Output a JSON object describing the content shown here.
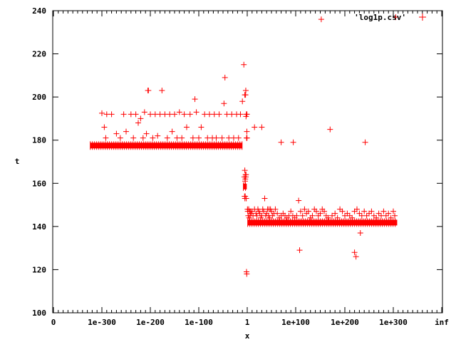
{
  "chart_data": {
    "type": "scatter",
    "xlabel": "x",
    "ylabel": "t",
    "ylim": [
      100,
      240
    ],
    "grid": false,
    "legend_placement": "top-right",
    "x_scale": "log-of-log (exponent)",
    "x_ticks": [
      {
        "label": "0",
        "pos": 0
      },
      {
        "label": "1e-300",
        "pos": 1
      },
      {
        "label": "1e-200",
        "pos": 2
      },
      {
        "label": "1e-100",
        "pos": 3
      },
      {
        "label": "1",
        "pos": 4
      },
      {
        "label": "1e+100",
        "pos": 5
      },
      {
        "label": "1e+200",
        "pos": 6
      },
      {
        "label": "1e+300",
        "pos": 7
      },
      {
        "label": "inf",
        "pos": 8
      }
    ],
    "y_ticks": [
      100,
      120,
      140,
      160,
      180,
      200,
      220,
      240
    ],
    "series": [
      {
        "name": "'log1p.csv'",
        "color": "#ff0000",
        "marker": "plus",
        "bands": [
          {
            "x_from": -324,
            "x_to": -10,
            "y": 177.5
          },
          {
            "x_from": -8,
            "x_to": -1,
            "y": 158.5
          },
          {
            "x_from": 1,
            "x_to": 308,
            "y": 141.8
          }
        ],
        "points": [
          [
            -300,
            192.5
          ],
          [
            -295,
            186
          ],
          [
            -292,
            181
          ],
          [
            -290,
            192
          ],
          [
            -280,
            192
          ],
          [
            -270,
            183
          ],
          [
            -262,
            181
          ],
          [
            -255,
            192
          ],
          [
            -250,
            184
          ],
          [
            -240,
            192
          ],
          [
            -235,
            181
          ],
          [
            -230,
            192
          ],
          [
            -225,
            188
          ],
          [
            -220,
            190
          ],
          [
            -215,
            181
          ],
          [
            -212,
            193
          ],
          [
            -208,
            183
          ],
          [
            -205,
            203
          ],
          [
            -204,
            203
          ],
          [
            -200,
            192
          ],
          [
            -195,
            181
          ],
          [
            -190,
            192
          ],
          [
            -185,
            182
          ],
          [
            -180,
            192
          ],
          [
            -176,
            203
          ],
          [
            -170,
            192
          ],
          [
            -165,
            181
          ],
          [
            -160,
            192
          ],
          [
            -155,
            184
          ],
          [
            -150,
            192
          ],
          [
            -145,
            181
          ],
          [
            -140,
            193
          ],
          [
            -135,
            181
          ],
          [
            -130,
            192
          ],
          [
            -125,
            186
          ],
          [
            -118,
            192
          ],
          [
            -112,
            181
          ],
          [
            -108,
            199
          ],
          [
            -105,
            193
          ],
          [
            -100,
            181
          ],
          [
            -95,
            186
          ],
          [
            -88,
            192
          ],
          [
            -82,
            181
          ],
          [
            -78,
            192
          ],
          [
            -72,
            181
          ],
          [
            -68,
            192
          ],
          [
            -64,
            181
          ],
          [
            -58,
            192
          ],
          [
            -52,
            181
          ],
          [
            -48,
            197
          ],
          [
            -46,
            209
          ],
          [
            -42,
            192
          ],
          [
            -38,
            181
          ],
          [
            -32,
            192
          ],
          [
            -28,
            181
          ],
          [
            -22,
            192
          ],
          [
            -18,
            181
          ],
          [
            -14,
            192
          ],
          [
            -10,
            198
          ],
          [
            -7,
            215
          ],
          [
            -5,
            201
          ],
          [
            -3,
            203
          ],
          [
            -3.5,
            201
          ],
          [
            -2.5,
            191
          ],
          [
            -1.8,
            192
          ],
          [
            -1.2,
            181
          ],
          [
            -1,
            181
          ],
          [
            -0.6,
            192
          ],
          [
            -6,
            163
          ],
          [
            -5,
            166
          ],
          [
            -4.5,
            161
          ],
          [
            -4,
            162
          ],
          [
            -3.5,
            164
          ],
          [
            -3,
            163
          ],
          [
            -2.5,
            164
          ],
          [
            -5.5,
            154
          ],
          [
            -4.8,
            153
          ],
          [
            -4.2,
            154
          ],
          [
            -2,
            153
          ],
          [
            -0.8,
            184
          ],
          [
            -0.5,
            181
          ],
          [
            -1.5,
            119
          ],
          [
            -1,
            118
          ],
          [
            0.5,
            148
          ],
          [
            1,
            147
          ],
          [
            2,
            145
          ],
          [
            3,
            148
          ],
          [
            4,
            144
          ],
          [
            5,
            147
          ],
          [
            6,
            145
          ],
          [
            7,
            147
          ],
          [
            8,
            146
          ],
          [
            10,
            147
          ],
          [
            12,
            145
          ],
          [
            15,
            148
          ],
          [
            18,
            146
          ],
          [
            20,
            145
          ],
          [
            22,
            148
          ],
          [
            24,
            147
          ],
          [
            26,
            146
          ],
          [
            28,
            144
          ],
          [
            30,
            145
          ],
          [
            32,
            148
          ],
          [
            34,
            147
          ],
          [
            36,
            153
          ],
          [
            38,
            145
          ],
          [
            40,
            146
          ],
          [
            42,
            148
          ],
          [
            44,
            145
          ],
          [
            46,
            144
          ],
          [
            48,
            148
          ],
          [
            50,
            147
          ],
          [
            52,
            145
          ],
          [
            55,
            146
          ],
          [
            15,
            186
          ],
          [
            30,
            186
          ],
          [
            45,
            148
          ],
          [
            58,
            148
          ],
          [
            62,
            146
          ],
          [
            66,
            144
          ],
          [
            70,
            145
          ],
          [
            74,
            146
          ],
          [
            78,
            145
          ],
          [
            82,
            144
          ],
          [
            86,
            145
          ],
          [
            90,
            147
          ],
          [
            94,
            145
          ],
          [
            98,
            144
          ],
          [
            102,
            145
          ],
          [
            106,
            152
          ],
          [
            110,
            147
          ],
          [
            114,
            145
          ],
          [
            118,
            148
          ],
          [
            122,
            146
          ],
          [
            126,
            147
          ],
          [
            130,
            144
          ],
          [
            134,
            145
          ],
          [
            138,
            148
          ],
          [
            142,
            147
          ],
          [
            146,
            145
          ],
          [
            150,
            146
          ],
          [
            154,
            148
          ],
          [
            158,
            147
          ],
          [
            162,
            145
          ],
          [
            166,
            144
          ],
          [
            70,
            179
          ],
          [
            95,
            179
          ],
          [
            152,
            236
          ],
          [
            170,
            185
          ],
          [
            108,
            129
          ],
          [
            174,
            145
          ],
          [
            180,
            146
          ],
          [
            185,
            144
          ],
          [
            190,
            148
          ],
          [
            195,
            147
          ],
          [
            200,
            145
          ],
          [
            205,
            146
          ],
          [
            210,
            145
          ],
          [
            215,
            144
          ],
          [
            220,
            147
          ],
          [
            225,
            148
          ],
          [
            230,
            146
          ],
          [
            235,
            145
          ],
          [
            240,
            147
          ],
          [
            245,
            145
          ],
          [
            250,
            146
          ],
          [
            255,
            147
          ],
          [
            260,
            145
          ],
          [
            265,
            144
          ],
          [
            270,
            146
          ],
          [
            275,
            145
          ],
          [
            280,
            147
          ],
          [
            285,
            145
          ],
          [
            290,
            146
          ],
          [
            295,
            144
          ],
          [
            300,
            147
          ],
          [
            303,
            145
          ],
          [
            232,
            137
          ],
          [
            220,
            128
          ],
          [
            223,
            126
          ],
          [
            242,
            179
          ],
          [
            305,
            237
          ]
        ]
      }
    ]
  }
}
